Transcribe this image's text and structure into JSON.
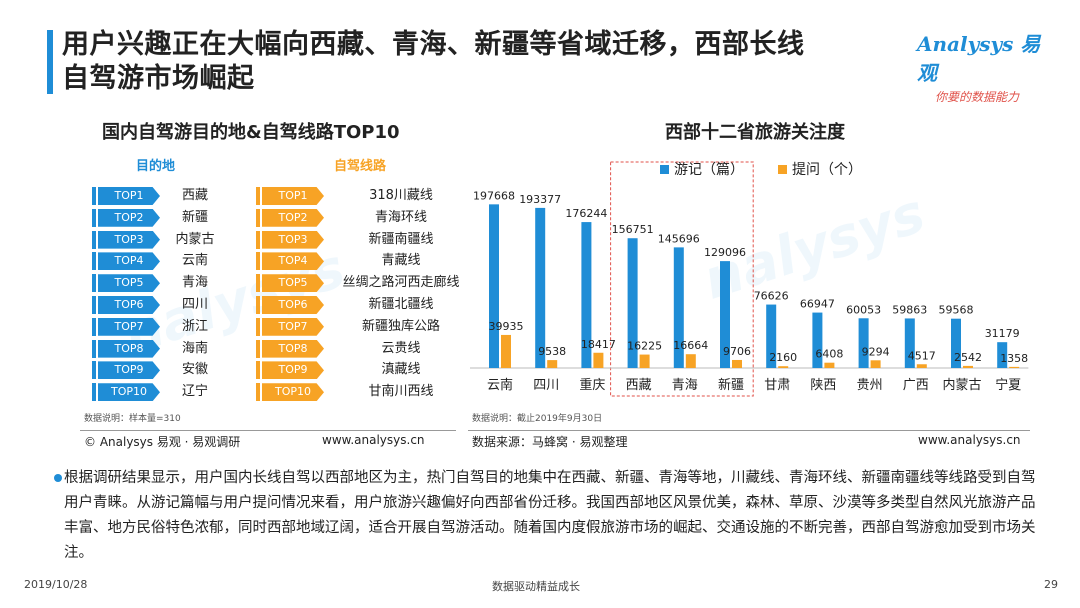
{
  "header": {
    "title_line1": "用户兴趣正在大幅向西藏、青海、新疆等省域迁移，西部长线",
    "title_line2": "自驾游市场崛起",
    "logo_text": "Analysys 易观",
    "logo_slogan": "你要的数据能力"
  },
  "left_panel": {
    "title": "国内自驾游目的地&自驾线路TOP10",
    "dest_header": "目的地",
    "route_header": "自驾线路",
    "ranks": [
      "TOP1",
      "TOP2",
      "TOP3",
      "TOP4",
      "TOP5",
      "TOP6",
      "TOP7",
      "TOP8",
      "TOP9",
      "TOP10"
    ],
    "destinations": [
      "西藏",
      "新疆",
      "内蒙古",
      "云南",
      "青海",
      "四川",
      "浙江",
      "海南",
      "安徽",
      "辽宁"
    ],
    "routes": [
      "318川藏线",
      "青海环线",
      "新疆南疆线",
      "青藏线",
      "丝绸之路河西走廊线",
      "新疆北疆线",
      "新疆独库公路",
      "云贵线",
      "滇藏线",
      "甘南川西线"
    ],
    "note": "数据说明：样本量=310",
    "source_left": "© Analysys 易观 · 易观调研",
    "source_right": "www.analysys.cn"
  },
  "right_panel": {
    "note": "数据说明：截止2019年9月30日",
    "source_left": "数据来源：马蜂窝 · 易观整理",
    "source_right": "www.analysys.cn"
  },
  "colors": {
    "accent": "#1f8dd6",
    "orange": "#f7a325",
    "highlight": "#e0524a"
  },
  "chart_data": {
    "type": "bar",
    "title": "西部十二省旅游关注度",
    "categories": [
      "云南",
      "四川",
      "重庆",
      "西藏",
      "青海",
      "新疆",
      "甘肃",
      "陕西",
      "贵州",
      "广西",
      "内蒙古",
      "宁夏"
    ],
    "series": [
      {
        "name": "游记（篇）",
        "color": "#1f8dd6",
        "values": [
          197668,
          193377,
          176244,
          156751,
          145696,
          129096,
          76626,
          66947,
          60053,
          59863,
          59568,
          31179
        ]
      },
      {
        "name": "提问（个）",
        "color": "#f7a325",
        "values": [
          39935,
          9538,
          18417,
          16225,
          16664,
          9706,
          2160,
          6408,
          9294,
          4517,
          2542,
          1358
        ]
      }
    ],
    "highlight_categories": [
      "西藏",
      "青海",
      "新疆"
    ],
    "ylim": [
      0,
      215000
    ],
    "xlabel": "",
    "ylabel": ""
  },
  "paragraph": "根据调研结果显示，用户国内长线自驾以西部地区为主，热门自驾目的地集中在西藏、新疆、青海等地，川藏线、青海环线、新疆南疆线等线路受到自驾用户青睐。从游记篇幅与用户提问情况来看，用户旅游兴趣偏好向西部省份迁移。我国西部地区风景优美，森林、草原、沙漠等多类型自然风光旅游产品丰富、地方民俗特色浓郁，同时西部地域辽阔，适合开展自驾游活动。随着国内度假旅游市场的崛起、交通设施的不断完善，西部自驾游愈加受到市场关注。",
  "footer": {
    "date": "2019/10/28",
    "center": "数据驱动精益成长",
    "page": "29"
  }
}
